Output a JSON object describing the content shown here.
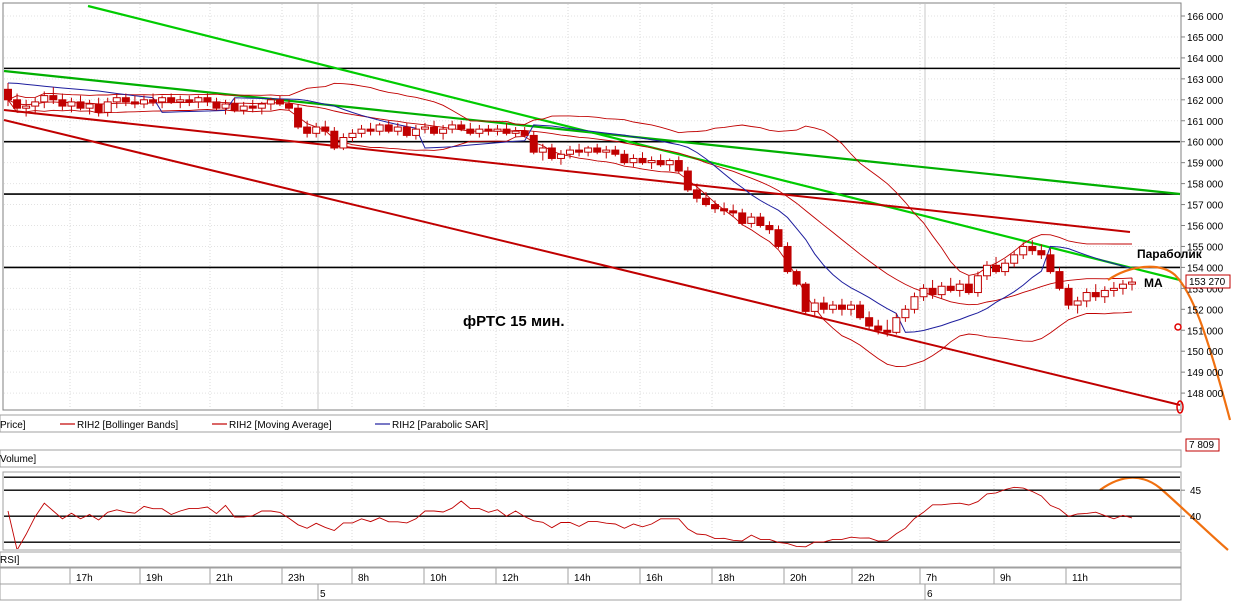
{
  "chart_data": {
    "type": "candlestick",
    "title": "фРТС   15 мин.",
    "instrument": "RIH2",
    "price_axis": {
      "range": [
        147000,
        166500
      ],
      "ticks": [
        "166 000",
        "165 000",
        "164 000",
        "163 000",
        "162 000",
        "161 000",
        "160 000",
        "159 000",
        "158 000",
        "157 000",
        "156 000",
        "155 000",
        "154 000",
        "153 000",
        "152 000",
        "151 000",
        "150 000",
        "149 000",
        "148 000"
      ],
      "tick_values": [
        166000,
        165000,
        164000,
        163000,
        162000,
        161000,
        160000,
        159000,
        158000,
        157000,
        156000,
        155000,
        154000,
        153000,
        152000,
        151000,
        150000,
        149000,
        148000
      ],
      "last_price": "153 270",
      "last_price_value": 153270
    },
    "time_axis": {
      "hour_labels": [
        "17h",
        "19h",
        "21h",
        "23h",
        "8h",
        "10h",
        "12h",
        "14h",
        "16h",
        "18h",
        "20h",
        "22h",
        "7h",
        "9h",
        "11h"
      ],
      "date_labels": [
        "5",
        "6"
      ]
    },
    "legend": [
      "Price]",
      "RIH2 [Bollinger Bands]",
      "RIH2 [Moving Average]",
      "RIH2 [Parabolic SAR]"
    ],
    "legend_colors": [
      "#c00000",
      "#c00000",
      "#c00000",
      "#1e1e9e"
    ],
    "annotations": [
      "Параболик",
      "MA"
    ],
    "volume_pane": {
      "label": "Volume]",
      "last_value": "7 809"
    },
    "rsi_pane": {
      "label": "RSI]",
      "ticks": [
        "45",
        "40"
      ],
      "tick_values": [
        45,
        40
      ]
    },
    "candles": [
      [
        162.5,
        162.8,
        161.7,
        162.0
      ],
      [
        162.0,
        162.3,
        161.4,
        161.6
      ],
      [
        161.6,
        162.0,
        161.2,
        161.7
      ],
      [
        161.7,
        162.1,
        161.3,
        161.9
      ],
      [
        161.9,
        162.4,
        161.6,
        162.2
      ],
      [
        162.2,
        162.6,
        161.8,
        162.0
      ],
      [
        162.0,
        162.3,
        161.5,
        161.7
      ],
      [
        161.7,
        162.1,
        161.4,
        161.9
      ],
      [
        161.9,
        162.2,
        161.5,
        161.6
      ],
      [
        161.6,
        162.0,
        161.3,
        161.8
      ],
      [
        161.8,
        162.1,
        161.2,
        161.4
      ],
      [
        161.4,
        162.1,
        161.2,
        161.9
      ],
      [
        161.9,
        162.3,
        161.6,
        162.1
      ],
      [
        162.1,
        162.3,
        161.7,
        161.9
      ],
      [
        161.9,
        162.2,
        161.6,
        161.8
      ],
      [
        161.8,
        162.2,
        161.6,
        162.0
      ],
      [
        162.0,
        162.3,
        161.7,
        161.9
      ],
      [
        161.9,
        162.2,
        161.6,
        162.1
      ],
      [
        162.1,
        162.3,
        161.8,
        161.9
      ],
      [
        161.9,
        162.2,
        161.6,
        162.0
      ],
      [
        162.0,
        162.2,
        161.7,
        161.9
      ],
      [
        161.9,
        162.2,
        161.6,
        162.1
      ],
      [
        162.1,
        162.3,
        161.7,
        161.9
      ],
      [
        161.9,
        162.1,
        161.5,
        161.6
      ],
      [
        161.6,
        162.0,
        161.3,
        161.8
      ],
      [
        161.8,
        162.1,
        161.4,
        161.5
      ],
      [
        161.5,
        161.9,
        161.3,
        161.7
      ],
      [
        161.7,
        162.0,
        161.4,
        161.6
      ],
      [
        161.6,
        161.9,
        161.3,
        161.8
      ],
      [
        161.8,
        162.1,
        161.5,
        162.0
      ],
      [
        162.0,
        162.2,
        161.7,
        161.8
      ],
      [
        161.8,
        162.0,
        161.5,
        161.6
      ],
      [
        161.6,
        161.8,
        160.6,
        160.7
      ],
      [
        160.7,
        161.0,
        160.2,
        160.4
      ],
      [
        160.4,
        160.9,
        160.2,
        160.7
      ],
      [
        160.7,
        161.0,
        160.3,
        160.5
      ],
      [
        160.5,
        160.7,
        159.6,
        159.7
      ],
      [
        159.7,
        160.4,
        159.6,
        160.2
      ],
      [
        160.2,
        160.6,
        160.0,
        160.4
      ],
      [
        160.4,
        160.8,
        160.2,
        160.6
      ],
      [
        160.6,
        160.9,
        160.3,
        160.5
      ],
      [
        160.5,
        160.9,
        160.3,
        160.8
      ],
      [
        160.8,
        161.0,
        160.4,
        160.5
      ],
      [
        160.5,
        160.9,
        160.3,
        160.7
      ],
      [
        160.7,
        160.9,
        160.2,
        160.3
      ],
      [
        160.3,
        160.8,
        160.1,
        160.6
      ],
      [
        160.6,
        160.9,
        160.4,
        160.7
      ],
      [
        160.7,
        161.0,
        160.3,
        160.4
      ],
      [
        160.4,
        160.8,
        160.1,
        160.6
      ],
      [
        160.6,
        161.0,
        160.4,
        160.8
      ],
      [
        160.8,
        161.0,
        160.5,
        160.6
      ],
      [
        160.6,
        160.9,
        160.3,
        160.4
      ],
      [
        160.4,
        160.8,
        160.2,
        160.6
      ],
      [
        160.6,
        160.8,
        160.3,
        160.5
      ],
      [
        160.5,
        160.8,
        160.3,
        160.6
      ],
      [
        160.6,
        160.9,
        160.3,
        160.4
      ],
      [
        160.4,
        160.7,
        160.2,
        160.5
      ],
      [
        160.5,
        160.7,
        160.2,
        160.3
      ],
      [
        160.3,
        160.5,
        159.4,
        159.5
      ],
      [
        159.5,
        159.9,
        159.1,
        159.7
      ],
      [
        159.7,
        159.9,
        159.1,
        159.2
      ],
      [
        159.2,
        159.6,
        158.9,
        159.4
      ],
      [
        159.4,
        159.8,
        159.2,
        159.6
      ],
      [
        159.6,
        159.9,
        159.3,
        159.5
      ],
      [
        159.5,
        159.8,
        159.3,
        159.7
      ],
      [
        159.7,
        159.9,
        159.4,
        159.5
      ],
      [
        159.5,
        159.8,
        159.2,
        159.6
      ],
      [
        159.6,
        159.8,
        159.3,
        159.4
      ],
      [
        159.4,
        159.6,
        158.9,
        159.0
      ],
      [
        159.0,
        159.4,
        158.8,
        159.2
      ],
      [
        159.2,
        159.5,
        158.9,
        159.0
      ],
      [
        159.0,
        159.3,
        158.7,
        159.1
      ],
      [
        159.1,
        159.4,
        158.8,
        158.9
      ],
      [
        158.9,
        159.2,
        158.6,
        159.1
      ],
      [
        159.1,
        159.3,
        158.5,
        158.6
      ],
      [
        158.6,
        158.8,
        157.6,
        157.7
      ],
      [
        157.7,
        158.0,
        157.1,
        157.3
      ],
      [
        157.3,
        157.6,
        156.9,
        157.0
      ],
      [
        157.0,
        157.2,
        156.6,
        156.8
      ],
      [
        156.8,
        157.1,
        156.5,
        156.7
      ],
      [
        156.7,
        157.0,
        156.4,
        156.6
      ],
      [
        156.6,
        156.8,
        156.0,
        156.1
      ],
      [
        156.1,
        156.6,
        155.9,
        156.4
      ],
      [
        156.4,
        156.6,
        155.9,
        156.0
      ],
      [
        156.0,
        156.2,
        155.6,
        155.8
      ],
      [
        155.8,
        156.0,
        154.9,
        155.0
      ],
      [
        155.0,
        155.2,
        153.7,
        153.8
      ],
      [
        153.8,
        153.9,
        153.1,
        153.2
      ],
      [
        153.2,
        153.3,
        151.8,
        151.9
      ],
      [
        151.9,
        152.5,
        151.7,
        152.3
      ],
      [
        152.3,
        152.6,
        151.8,
        152.0
      ],
      [
        152.0,
        152.4,
        151.8,
        152.2
      ],
      [
        152.2,
        152.5,
        151.7,
        152.0
      ],
      [
        152.0,
        152.4,
        151.7,
        152.2
      ],
      [
        152.2,
        152.4,
        151.5,
        151.6
      ],
      [
        151.6,
        151.9,
        151.0,
        151.2
      ],
      [
        151.2,
        151.5,
        150.8,
        151.0
      ],
      [
        151.0,
        151.5,
        150.7,
        150.9
      ],
      [
        150.9,
        151.8,
        150.8,
        151.6
      ],
      [
        151.6,
        152.2,
        151.4,
        152.0
      ],
      [
        152.0,
        152.8,
        151.8,
        152.6
      ],
      [
        152.6,
        153.2,
        152.4,
        153.0
      ],
      [
        153.0,
        153.4,
        152.5,
        152.7
      ],
      [
        152.7,
        153.3,
        152.5,
        153.1
      ],
      [
        153.1,
        153.5,
        152.8,
        152.9
      ],
      [
        152.9,
        153.4,
        152.6,
        153.2
      ],
      [
        153.2,
        153.6,
        152.7,
        152.8
      ],
      [
        152.8,
        153.8,
        152.6,
        153.6
      ],
      [
        153.6,
        154.3,
        153.4,
        154.1
      ],
      [
        154.1,
        154.5,
        153.7,
        153.8
      ],
      [
        153.8,
        154.4,
        153.6,
        154.2
      ],
      [
        154.2,
        154.8,
        154.0,
        154.6
      ],
      [
        154.6,
        155.2,
        154.4,
        155.0
      ],
      [
        155.0,
        155.3,
        154.6,
        154.8
      ],
      [
        154.8,
        155.1,
        154.4,
        154.6
      ],
      [
        154.6,
        154.9,
        153.7,
        153.8
      ],
      [
        153.8,
        154.0,
        152.9,
        153.0
      ],
      [
        153.0,
        153.2,
        152.0,
        152.2
      ],
      [
        152.2,
        152.6,
        151.8,
        152.4
      ],
      [
        152.4,
        153.0,
        152.1,
        152.8
      ],
      [
        152.8,
        153.2,
        152.4,
        152.6
      ],
      [
        152.6,
        153.1,
        152.3,
        152.9
      ],
      [
        152.9,
        153.3,
        152.6,
        153.0
      ],
      [
        153.0,
        153.4,
        152.7,
        153.2
      ],
      [
        153.2,
        153.5,
        152.9,
        153.3
      ]
    ],
    "support_resistance_levels": [
      163500,
      160000,
      157500,
      154000
    ],
    "rsi_levels": [
      47.5,
      45,
      40,
      35
    ],
    "rsi_visible_range": [
      33.5,
      48.5
    ]
  }
}
